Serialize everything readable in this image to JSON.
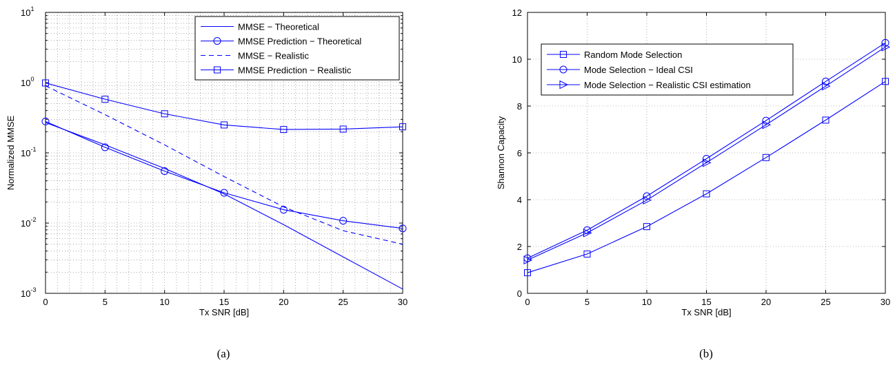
{
  "captions": [
    "(a)",
    "(b)"
  ],
  "chart_data": [
    {
      "type": "line",
      "yscale": "log",
      "xlabel": "Tx SNR [dB]",
      "ylabel": "Normalized MMSE",
      "xlim": [
        0,
        30
      ],
      "ylim": [
        0.001,
        10
      ],
      "xticks": [
        0,
        5,
        10,
        15,
        20,
        25,
        30
      ],
      "yticks": [
        {
          "base": "10",
          "exp": "1",
          "value": 10
        },
        {
          "base": "10",
          "exp": "0",
          "value": 1
        },
        {
          "base": "10",
          "exp": "-1",
          "value": 0.1
        },
        {
          "base": "10",
          "exp": "-2",
          "value": 0.01
        },
        {
          "base": "10",
          "exp": "-3",
          "value": 0.001
        }
      ],
      "grid": true,
      "legend_position": "top-right",
      "color": "#0000ff",
      "series": [
        {
          "name": "MMSE − Theoretical",
          "marker": "none",
          "dash": false,
          "x": [
            0,
            5,
            10,
            15,
            20,
            25,
            30
          ],
          "y": [
            0.27,
            0.13,
            0.06,
            0.026,
            0.0095,
            0.0033,
            0.00115
          ]
        },
        {
          "name": "MMSE Prediction − Theoretical",
          "marker": "circle",
          "dash": false,
          "x": [
            0,
            5,
            10,
            15,
            20,
            25,
            30
          ],
          "y": [
            0.28,
            0.12,
            0.055,
            0.027,
            0.0155,
            0.0108,
            0.0084
          ]
        },
        {
          "name": "MMSE − Realistic",
          "marker": "none",
          "dash": true,
          "x": [
            0,
            5,
            10,
            15,
            20,
            25,
            30
          ],
          "y": [
            0.9,
            0.35,
            0.13,
            0.046,
            0.017,
            0.0078,
            0.005
          ]
        },
        {
          "name": "MMSE Prediction − Realistic",
          "marker": "square",
          "dash": false,
          "x": [
            0,
            5,
            10,
            15,
            20,
            25,
            30
          ],
          "y": [
            0.99,
            0.58,
            0.36,
            0.25,
            0.215,
            0.218,
            0.235
          ]
        }
      ]
    },
    {
      "type": "line",
      "yscale": "linear",
      "xlabel": "Tx SNR [dB]",
      "ylabel": "Shannon Capacity",
      "xlim": [
        0,
        30
      ],
      "ylim": [
        0,
        12
      ],
      "xticks": [
        0,
        5,
        10,
        15,
        20,
        25,
        30
      ],
      "yticks": [
        0,
        2,
        4,
        6,
        8,
        10,
        12
      ],
      "grid": true,
      "legend_position": "top-left",
      "color": "#0000ff",
      "series": [
        {
          "name": "Random Mode Selection",
          "marker": "square",
          "dash": false,
          "x": [
            0,
            5,
            10,
            15,
            20,
            25,
            30
          ],
          "y": [
            0.88,
            1.68,
            2.85,
            4.25,
            5.8,
            7.4,
            9.05
          ]
        },
        {
          "name": "Mode Selection − Ideal CSI",
          "marker": "circle",
          "dash": false,
          "x": [
            0,
            5,
            10,
            15,
            20,
            25,
            30
          ],
          "y": [
            1.5,
            2.7,
            4.15,
            5.75,
            7.38,
            9.05,
            10.7
          ]
        },
        {
          "name": "Mode Selection − Realistic CSI estimation",
          "marker": "triangle-right",
          "dash": false,
          "x": [
            0,
            5,
            10,
            15,
            20,
            25,
            30
          ],
          "y": [
            1.42,
            2.58,
            3.98,
            5.58,
            7.2,
            8.85,
            10.52
          ]
        }
      ]
    }
  ]
}
